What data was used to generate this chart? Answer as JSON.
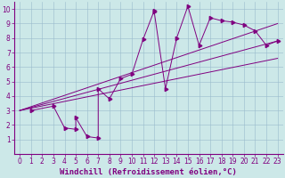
{
  "xlabel": "Windchill (Refroidissement éolien,°C)",
  "xlim": [
    -0.5,
    23.5
  ],
  "ylim": [
    0,
    10.5
  ],
  "xticks": [
    0,
    1,
    2,
    3,
    4,
    5,
    6,
    7,
    8,
    9,
    10,
    11,
    12,
    13,
    14,
    15,
    16,
    17,
    18,
    19,
    20,
    21,
    22,
    23
  ],
  "yticks": [
    1,
    2,
    3,
    4,
    5,
    6,
    7,
    8,
    9,
    10
  ],
  "scatter_x": [
    1,
    3,
    4,
    5,
    5,
    6,
    7,
    7,
    8,
    9,
    10,
    11,
    12,
    12,
    13,
    14,
    15,
    16,
    17,
    18,
    19,
    20,
    21,
    22,
    23
  ],
  "scatter_y": [
    3.0,
    3.3,
    1.8,
    1.7,
    2.5,
    1.2,
    1.1,
    4.5,
    3.8,
    5.2,
    5.5,
    7.9,
    9.9,
    9.8,
    4.5,
    8.0,
    10.2,
    7.5,
    9.4,
    9.2,
    9.1,
    8.9,
    8.5,
    7.5,
    7.8
  ],
  "line1_x": [
    0,
    23
  ],
  "line1_y": [
    3.0,
    9.0
  ],
  "line2_x": [
    0,
    23
  ],
  "line2_y": [
    3.0,
    7.8
  ],
  "line3_x": [
    0,
    23
  ],
  "line3_y": [
    3.0,
    6.6
  ],
  "color": "#800080",
  "bg_color": "#cce8e8",
  "grid_color": "#99bbcc",
  "font_color": "#800080",
  "tick_fontsize": 5.5,
  "label_fontsize": 6.5
}
